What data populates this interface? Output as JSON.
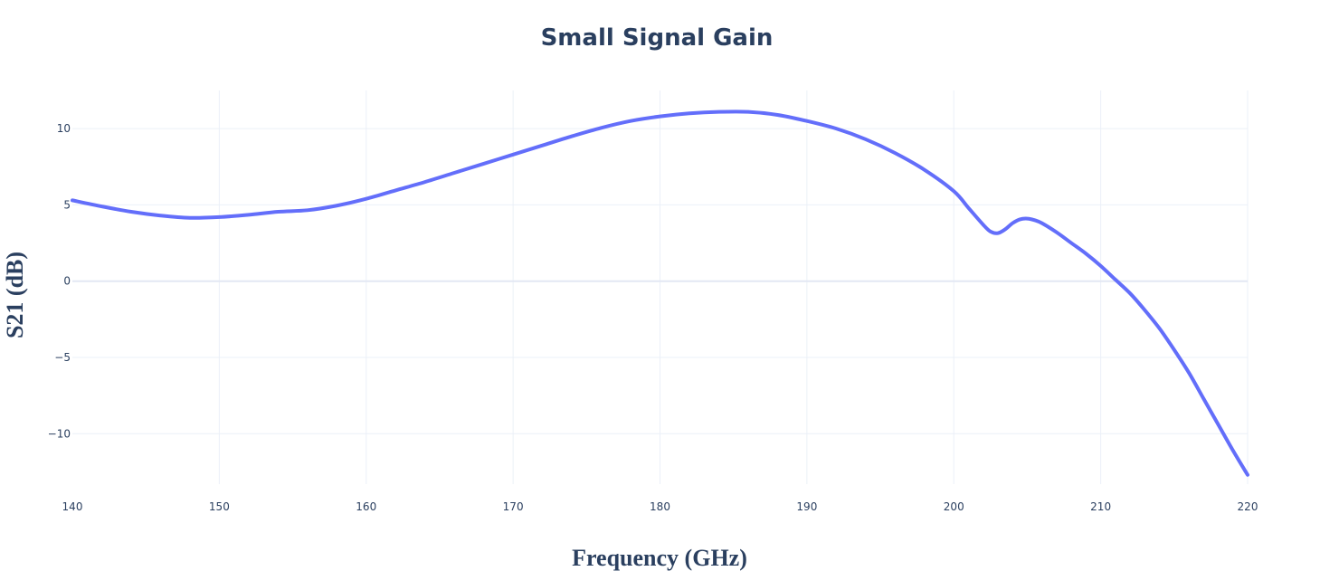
{
  "chart_data": {
    "type": "line",
    "title": "Small Signal Gain",
    "xlabel": "Frequency (GHz)",
    "ylabel": "S21 (dB)",
    "xlim": [
      140,
      220
    ],
    "ylim": [
      -13.9,
      12.5
    ],
    "xticks": [
      140,
      150,
      160,
      170,
      180,
      190,
      200,
      210,
      220
    ],
    "xtick_labels": [
      "140",
      "150",
      "160",
      "170",
      "180",
      "190",
      "200",
      "210",
      "220"
    ],
    "yticks": [
      10,
      5,
      0,
      -5,
      -10
    ],
    "ytick_labels": [
      "10",
      "5",
      "0",
      "−5",
      "−10"
    ],
    "grid": true,
    "series": [
      {
        "color": "#636efa",
        "x": [
          140,
          142,
          144,
          146,
          148,
          150,
          152,
          154,
          156,
          158,
          160,
          162,
          164,
          166,
          168,
          170,
          172,
          174,
          176,
          178,
          180,
          182,
          184,
          186,
          188,
          190,
          192,
          194,
          196,
          198,
          200,
          201,
          202,
          202.5,
          203,
          203.5,
          204,
          204.5,
          205,
          205.5,
          206,
          207,
          208,
          209,
          210,
          211,
          212,
          213,
          214,
          215,
          216,
          217,
          218,
          219,
          220
        ],
        "y": [
          5.3,
          4.9,
          4.55,
          4.3,
          4.15,
          4.2,
          4.35,
          4.55,
          4.65,
          4.95,
          5.4,
          5.95,
          6.5,
          7.1,
          7.7,
          8.3,
          8.9,
          9.5,
          10.05,
          10.5,
          10.8,
          11.0,
          11.1,
          11.1,
          10.9,
          10.5,
          10.0,
          9.3,
          8.4,
          7.3,
          5.9,
          4.8,
          3.7,
          3.25,
          3.15,
          3.4,
          3.8,
          4.05,
          4.1,
          4.0,
          3.8,
          3.2,
          2.5,
          1.8,
          1.0,
          0.1,
          -0.8,
          -1.9,
          -3.1,
          -4.5,
          -6.0,
          -7.7,
          -9.4,
          -11.1,
          -12.7
        ]
      }
    ]
  }
}
